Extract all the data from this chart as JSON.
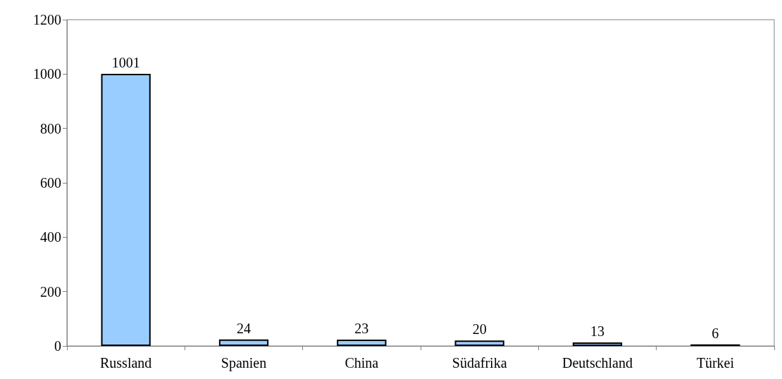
{
  "chart_data": {
    "type": "bar",
    "categories": [
      "Russland",
      "Spanien",
      "China",
      "Südafrika",
      "Deutschland",
      "Türkei"
    ],
    "values": [
      1001,
      24,
      23,
      20,
      13,
      6
    ],
    "color": "#99ccff",
    "ylim": [
      0,
      1200
    ],
    "yticks": [
      0,
      200,
      400,
      600,
      800,
      1000,
      1200
    ],
    "grid": false,
    "data_labels": true
  }
}
